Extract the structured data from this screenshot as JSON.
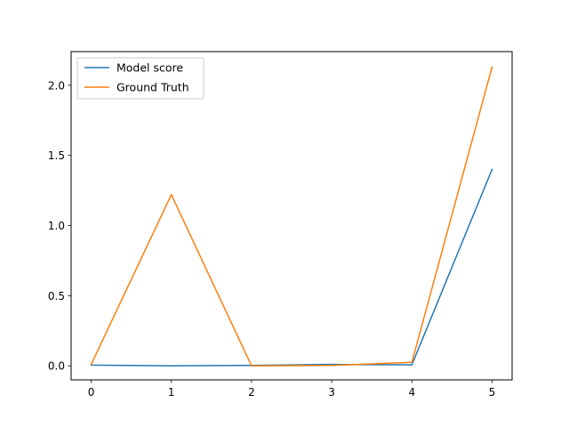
{
  "chart_data": {
    "type": "line",
    "title": "",
    "xlabel": "",
    "ylabel": "",
    "x": [
      0,
      1,
      2,
      3,
      4,
      5
    ],
    "xlim": [
      -0.25,
      5.25
    ],
    "ylim": [
      -0.1,
      2.24
    ],
    "xticks": [
      "0",
      "1",
      "2",
      "3",
      "4",
      "5"
    ],
    "yticks": [
      "0.0",
      "0.5",
      "1.0",
      "1.5",
      "2.0"
    ],
    "ytick_values": [
      0.0,
      0.5,
      1.0,
      1.5,
      2.0
    ],
    "grid": false,
    "legend_position": "top-left",
    "series": [
      {
        "name": "Model score",
        "color": "#1f77b4",
        "values": [
          0.005,
          0.0,
          0.003,
          0.01,
          0.007,
          1.4
        ]
      },
      {
        "name": "Ground Truth",
        "color": "#ff7f0e",
        "values": [
          0.01,
          1.22,
          0.0,
          0.003,
          0.025,
          2.13
        ]
      }
    ]
  }
}
